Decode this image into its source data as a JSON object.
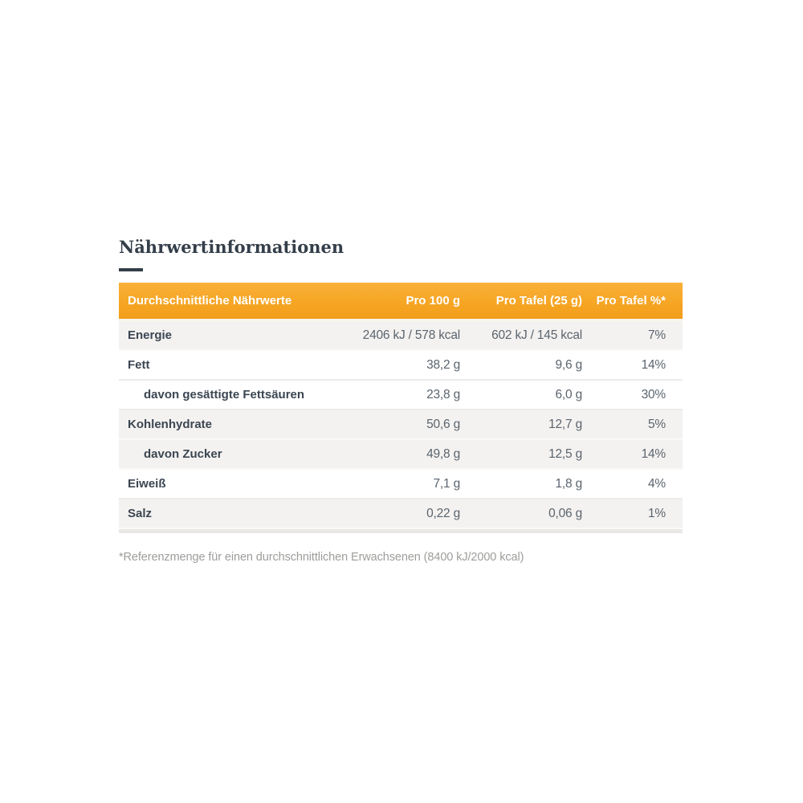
{
  "title": "Nährwertinformationen",
  "colors": {
    "header_orange_top": "#F9B039",
    "header_orange_mid": "#F6A624",
    "header_orange_bottom": "#F19D1B",
    "header_text": "#FFFFFF",
    "title_color": "#333E49",
    "label_color": "#3B4652",
    "value_color": "#5A646E",
    "row_gray": "#F4F2F0",
    "sep_light": "#FBFAF8",
    "sep_dark": "#ECEBE8",
    "bottom_bar": "#EAE8E5",
    "footnote_color": "#9D9D9B"
  },
  "table": {
    "headers": [
      "Durchschnittliche Nährwerte",
      "Pro 100 g",
      "Pro Tafel (25 g)",
      "Pro Tafel %*"
    ],
    "rows": [
      {
        "label": "Energie",
        "per_100g": "2406 kJ / 578 kcal",
        "per_tafel": "602 kJ / 145 kcal",
        "percent": "7%"
      },
      {
        "label": "Fett",
        "per_100g": "38,2 g",
        "per_tafel": "9,6 g",
        "percent": "14%"
      },
      {
        "label": "davon gesättigte Fettsäuren",
        "per_100g": "23,8 g",
        "per_tafel": "6,0 g",
        "percent": "30%"
      },
      {
        "label": "Kohlenhydrate",
        "per_100g": "50,6 g",
        "per_tafel": "12,7 g",
        "percent": "5%"
      },
      {
        "label": "davon Zucker",
        "per_100g": "49,8 g",
        "per_tafel": "12,5 g",
        "percent": "14%"
      },
      {
        "label": "Eiweiß",
        "per_100g": "7,1 g",
        "per_tafel": "1,8 g",
        "percent": "4%"
      },
      {
        "label": "Salz",
        "per_100g": "0,22 g",
        "per_tafel": "0,06 g",
        "percent": "1%"
      }
    ]
  },
  "footnote": "*Referenzmenge für einen durchschnittlichen Erwachsenen (8400 kJ/2000 kcal)"
}
